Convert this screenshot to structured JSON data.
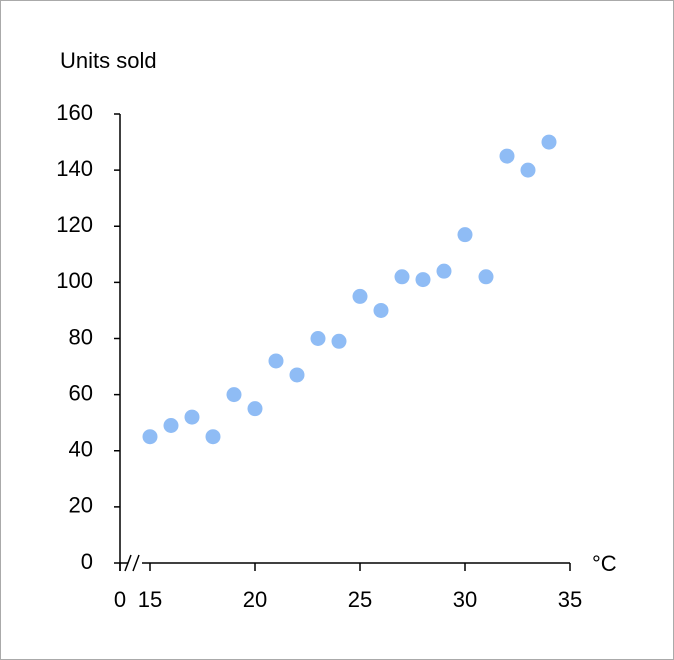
{
  "chart_data": {
    "type": "scatter",
    "y_label": "Units sold",
    "x_label": "°C",
    "x": [
      15,
      16,
      17,
      18,
      19,
      20,
      21,
      22,
      23,
      24,
      25,
      26,
      27,
      28,
      29,
      30,
      31,
      32,
      33,
      34
    ],
    "values": [
      45,
      49,
      52,
      45,
      60,
      55,
      72,
      67,
      80,
      79,
      95,
      90,
      102,
      101,
      104,
      117,
      102,
      145,
      140,
      150
    ],
    "color": "#8fbcf5",
    "xlim": [
      0,
      35
    ],
    "xticks": [
      0,
      15,
      20,
      25,
      30,
      35
    ],
    "x_axis_break": true,
    "ylim": [
      0,
      160
    ],
    "yticks": [
      0,
      20,
      40,
      60,
      80,
      100,
      120,
      140,
      160
    ]
  }
}
